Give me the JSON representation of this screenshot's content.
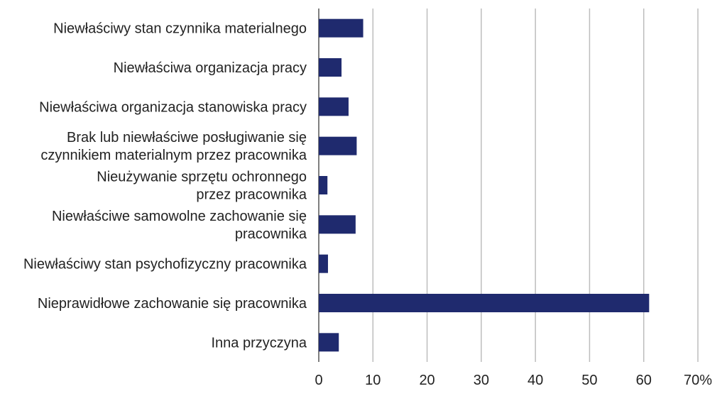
{
  "chart_data": {
    "type": "bar",
    "orientation": "horizontal",
    "title": "",
    "xlabel": "",
    "ylabel": "",
    "categories": [
      [
        "Niewłaściwy stan czynnika materialnego"
      ],
      [
        "Niewłaściwa organizacja pracy"
      ],
      [
        "Niewłaściwa organizacja stanowiska pracy"
      ],
      [
        "Brak lub niewłaściwe posługiwanie się",
        "czynnikiem materialnym przez pracownika"
      ],
      [
        "Nieużywanie sprzętu ochronnego",
        "przez pracownika"
      ],
      [
        "Niewłaściwe samowolne zachowanie się",
        "pracownika"
      ],
      [
        "Niewłaściwy stan psychofizyczny pracownika"
      ],
      [
        "Nieprawidłowe zachowanie się pracownika"
      ],
      [
        "Inna przyczyna"
      ]
    ],
    "values": [
      8.2,
      4.2,
      5.5,
      7.0,
      1.6,
      6.8,
      1.7,
      61.0,
      3.7
    ],
    "xlim": [
      0,
      70
    ],
    "ticks": [
      0,
      10,
      20,
      30,
      40,
      50,
      60,
      70
    ],
    "tick_labels": [
      "0",
      "10",
      "20",
      "30",
      "40",
      "50",
      "60",
      "70%"
    ],
    "grid": true,
    "bar_color": "#1f2a6e"
  }
}
